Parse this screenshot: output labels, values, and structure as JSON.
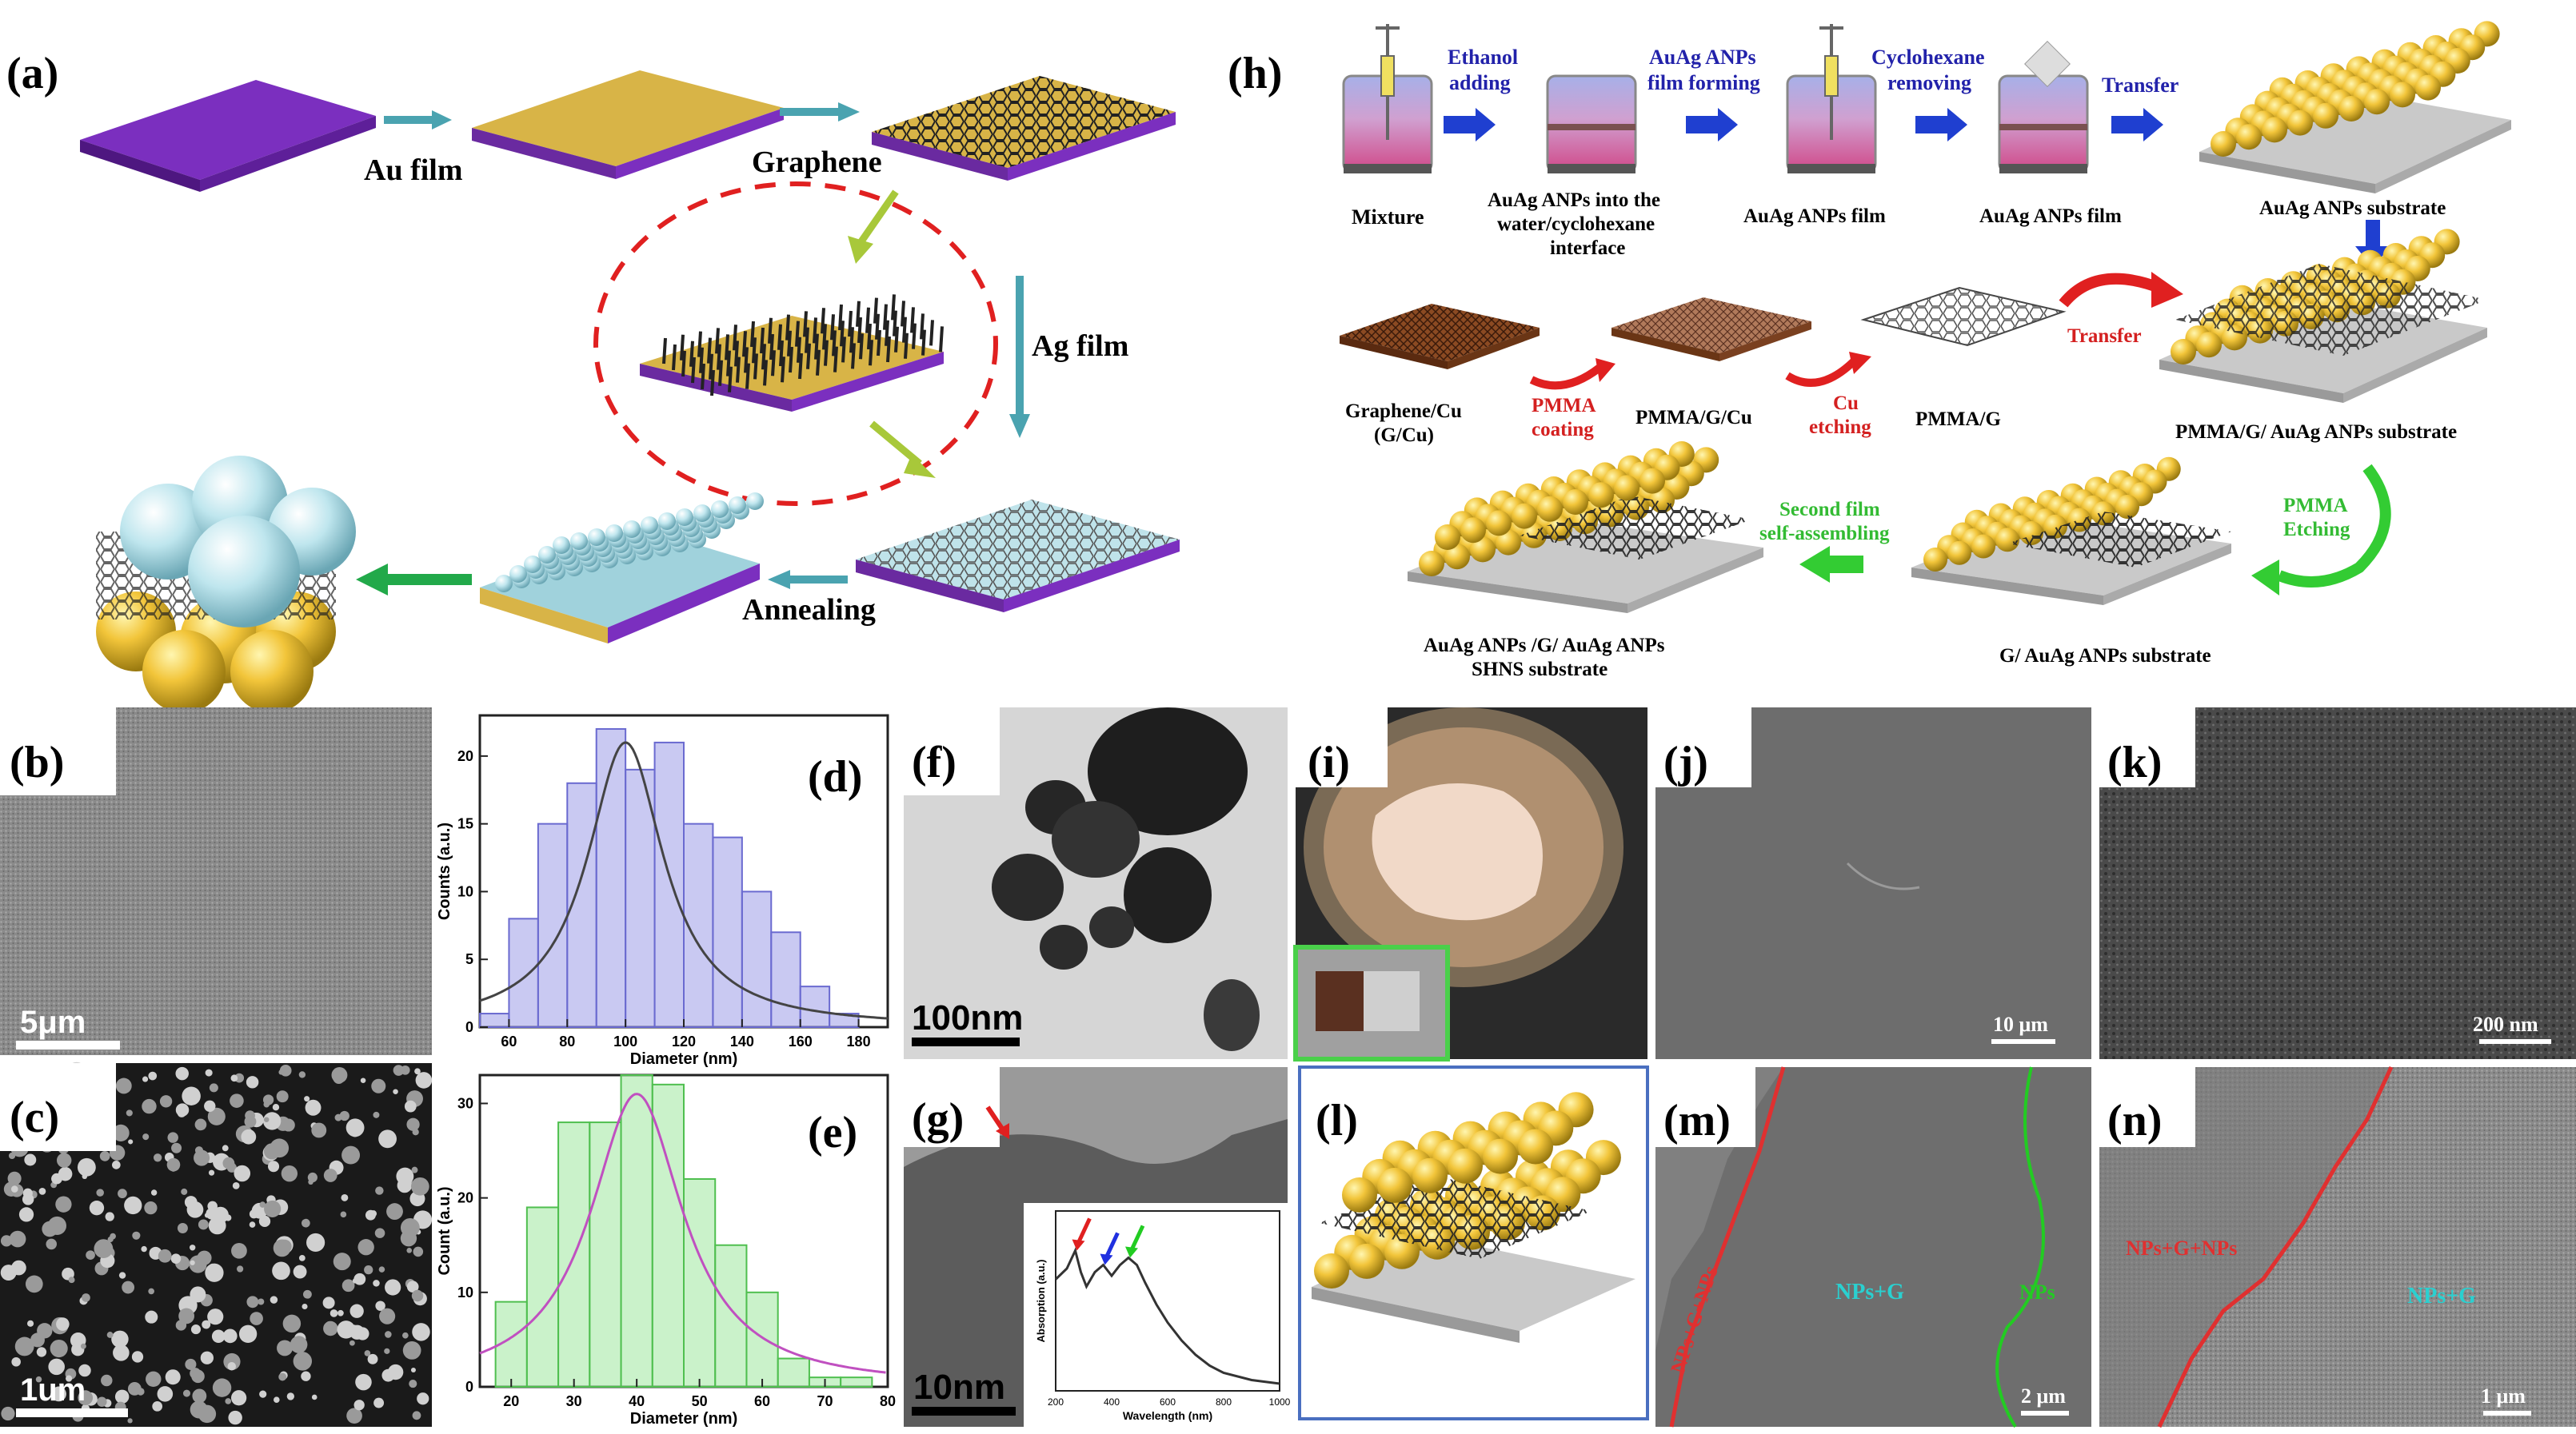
{
  "panel_labels": {
    "a": "(a)",
    "b": "(b)",
    "c": "(c)",
    "d": "(d)",
    "e": "(e)",
    "f": "(f)",
    "g": "(g)",
    "h": "(h)",
    "i": "(i)",
    "j": "(j)",
    "k": "(k)",
    "l": "(l)",
    "m": "(m)",
    "n": "(n)"
  },
  "panel_a": {
    "au_film": "Au film",
    "graphene": "Graphene",
    "ag_film": "Ag film",
    "annealing": "Annealing"
  },
  "panel_h": {
    "step1_arrow": [
      "Ethanol",
      "adding"
    ],
    "step2_arrow": [
      "AuAg ANPs",
      "film forming"
    ],
    "step3_arrow": [
      "Cyclohexane",
      "removing"
    ],
    "step4_arrow": "Transfer",
    "mixture": "Mixture",
    "interface_caption": [
      "AuAg ANPs into the",
      "water/cyclohexane",
      "interface"
    ],
    "film_caption_1": "AuAg ANPs film",
    "film_caption_2": "AuAg ANPs film",
    "substrate_caption": "AuAg ANPs substrate",
    "gcu_caption": [
      "Graphene/Cu",
      "(G/Cu)"
    ],
    "pmma_coating": [
      "PMMA",
      "coating"
    ],
    "pmma_g_cu": "PMMA/G/Cu",
    "cu_etching": [
      "Cu",
      "etching"
    ],
    "pmma_g": "PMMA/G",
    "transfer_red": "Transfer",
    "pmma_g_substrate": "PMMA/G/ AuAg ANPs substrate",
    "pmma_etching": [
      "PMMA",
      "Etching"
    ],
    "g_substrate": "G/ AuAg ANPs substrate",
    "second_film": [
      "Second film",
      "self-assembling"
    ],
    "shns_caption": [
      "AuAg ANPs /G/ AuAg ANPs",
      "SHNS substrate"
    ]
  },
  "scale_bars": {
    "b": "5μm",
    "c": "1um",
    "f": "100nm",
    "g": "10nm",
    "j": "10 μm",
    "k": "200 nm",
    "m": "2 μm",
    "n": "1 μm"
  },
  "sem_labels": {
    "m_left": "NPs+G+NPs",
    "m_mid": "NPs+G",
    "m_right": "NPs",
    "n_left": "NPs+G+NPs",
    "n_right": "NPs+G"
  },
  "colors": {
    "purple": "#7b2fbf",
    "gold": "#d8b447",
    "teal_arrow": "#4aa3b0",
    "blue_text": "#2222aa",
    "red_text": "#d42020",
    "green_text": "#33bb33",
    "hist_d": "#8c8ce0",
    "hist_e": "#8ee08e"
  },
  "chart_data": [
    {
      "panel": "d",
      "type": "bar",
      "xlabel": "Diameter (nm)",
      "ylabel": "Counts (a.u.)",
      "xlim": [
        50,
        190
      ],
      "ylim": [
        0,
        23
      ],
      "xticks": [
        "60",
        "80",
        "100",
        "120",
        "140",
        "160",
        "180"
      ],
      "yticks": [
        "0",
        "5",
        "10",
        "15",
        "20"
      ],
      "bin_width": 10,
      "bins": [
        55,
        65,
        75,
        85,
        95,
        105,
        115,
        125,
        135,
        145,
        155,
        165,
        175,
        185
      ],
      "values": [
        1,
        8,
        15,
        18,
        22,
        19,
        21,
        15,
        14,
        10,
        7,
        3,
        1,
        0
      ],
      "fit_peak": 100,
      "fit_height": 21,
      "fit_width": 16
    },
    {
      "panel": "e",
      "type": "bar",
      "xlabel": "Diameter (nm)",
      "ylabel": "Count (a.u.)",
      "xlim": [
        15,
        80
      ],
      "ylim": [
        0,
        33
      ],
      "xticks": [
        "20",
        "30",
        "40",
        "50",
        "60",
        "70",
        "80"
      ],
      "yticks": [
        "0",
        "10",
        "20",
        "30"
      ],
      "bin_width": 5,
      "bins": [
        20,
        25,
        30,
        35,
        40,
        45,
        50,
        55,
        60,
        65,
        70,
        75
      ],
      "values": [
        9,
        19,
        28,
        28,
        33,
        32,
        22,
        15,
        10,
        3,
        1,
        1
      ],
      "fit_peak": 40,
      "fit_height": 31,
      "fit_width": 9
    },
    {
      "panel": "g-inset",
      "type": "line",
      "xlabel": "Wavelength (nm)",
      "ylabel": "Absorption (a.u.)",
      "xlim": [
        200,
        1000
      ],
      "ylim": [
        0,
        1
      ],
      "xticks": [
        "200",
        "400",
        "600",
        "800",
        "1000"
      ],
      "x": [
        200,
        240,
        270,
        290,
        310,
        340,
        370,
        400,
        430,
        460,
        490,
        520,
        560,
        600,
        650,
        700,
        750,
        800,
        900,
        1000
      ],
      "y": [
        0.62,
        0.68,
        0.78,
        0.66,
        0.58,
        0.66,
        0.7,
        0.64,
        0.7,
        0.74,
        0.7,
        0.6,
        0.48,
        0.38,
        0.28,
        0.2,
        0.14,
        0.1,
        0.06,
        0.04
      ]
    }
  ]
}
